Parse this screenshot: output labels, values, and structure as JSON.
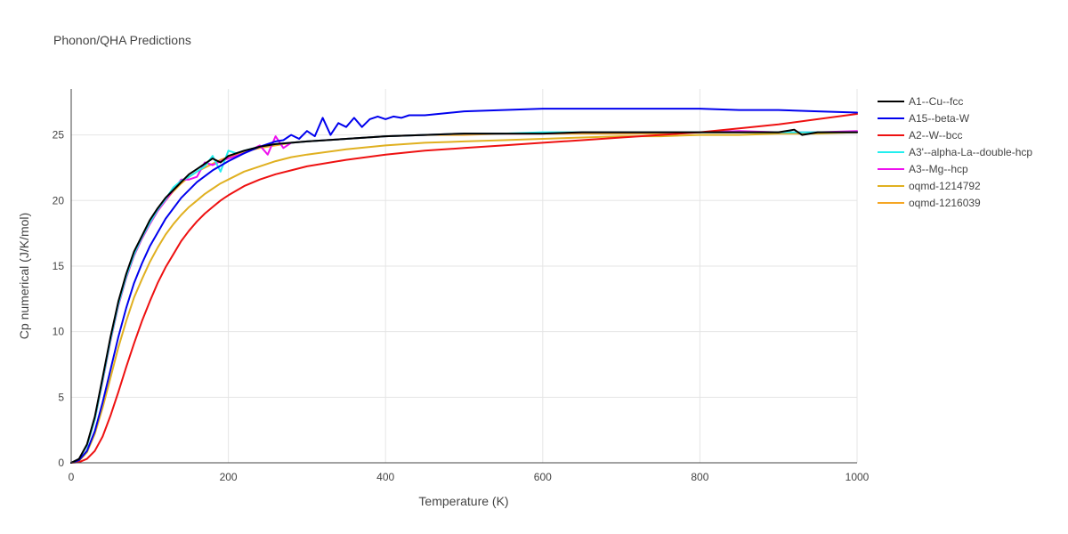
{
  "chart_data": {
    "type": "line",
    "title": "Phonon/QHA Predictions",
    "xlabel": "Temperature (K)",
    "ylabel": "Cp numerical (J/K/mol)",
    "xlim": [
      0,
      1000
    ],
    "ylim": [
      0,
      28.5
    ],
    "xticks": [
      0,
      200,
      400,
      600,
      800,
      1000
    ],
    "yticks": [
      0,
      5,
      10,
      15,
      20,
      25
    ],
    "grid": true,
    "legend_position": "right",
    "series": [
      {
        "name": "A1--Cu--fcc",
        "color": "#000000",
        "x": [
          0,
          10,
          20,
          30,
          40,
          50,
          60,
          70,
          80,
          90,
          100,
          110,
          120,
          130,
          140,
          150,
          160,
          170,
          180,
          190,
          200,
          220,
          240,
          260,
          280,
          300,
          350,
          400,
          450,
          500,
          550,
          600,
          650,
          700,
          750,
          800,
          850,
          900,
          920,
          930,
          950,
          1000
        ],
        "y": [
          0,
          0.3,
          1.4,
          3.5,
          6.5,
          9.6,
          12.3,
          14.4,
          16.1,
          17.3,
          18.5,
          19.4,
          20.2,
          20.8,
          21.4,
          22.0,
          22.4,
          22.8,
          23.2,
          22.9,
          23.4,
          23.8,
          24.1,
          24.3,
          24.4,
          24.5,
          24.7,
          24.9,
          25.0,
          25.1,
          25.1,
          25.1,
          25.2,
          25.2,
          25.2,
          25.2,
          25.2,
          25.2,
          25.4,
          25.0,
          25.2,
          25.2
        ]
      },
      {
        "name": "A15--beta-W",
        "color": "#0000ee",
        "x": [
          0,
          10,
          20,
          30,
          40,
          50,
          60,
          70,
          80,
          90,
          100,
          120,
          140,
          160,
          180,
          200,
          220,
          240,
          260,
          270,
          280,
          290,
          300,
          310,
          320,
          330,
          340,
          350,
          360,
          370,
          380,
          390,
          400,
          410,
          420,
          430,
          440,
          450,
          500,
          550,
          600,
          650,
          700,
          750,
          800,
          850,
          900,
          950,
          1000
        ],
        "y": [
          0,
          0.2,
          0.9,
          2.4,
          4.6,
          7.1,
          9.6,
          11.8,
          13.7,
          15.2,
          16.5,
          18.6,
          20.2,
          21.4,
          22.3,
          23.0,
          23.6,
          24.1,
          24.5,
          24.6,
          25.0,
          24.7,
          25.3,
          24.9,
          26.3,
          25.0,
          25.9,
          25.6,
          26.3,
          25.6,
          26.2,
          26.4,
          26.2,
          26.4,
          26.3,
          26.5,
          26.5,
          26.5,
          26.8,
          26.9,
          27.0,
          27.0,
          27.0,
          27.0,
          27.0,
          26.9,
          26.9,
          26.8,
          26.7
        ]
      },
      {
        "name": "A2--W--bcc",
        "color": "#ee1111",
        "x": [
          0,
          10,
          20,
          30,
          40,
          50,
          60,
          70,
          80,
          90,
          100,
          110,
          120,
          130,
          140,
          150,
          160,
          170,
          180,
          190,
          200,
          220,
          240,
          260,
          280,
          300,
          350,
          400,
          450,
          500,
          550,
          600,
          650,
          700,
          750,
          800,
          850,
          900,
          950,
          1000
        ],
        "y": [
          0,
          0.05,
          0.3,
          0.9,
          2.0,
          3.6,
          5.4,
          7.3,
          9.1,
          10.8,
          12.3,
          13.7,
          14.9,
          15.9,
          16.9,
          17.7,
          18.4,
          19.0,
          19.5,
          20.0,
          20.4,
          21.1,
          21.6,
          22.0,
          22.3,
          22.6,
          23.1,
          23.5,
          23.8,
          24.0,
          24.2,
          24.4,
          24.6,
          24.8,
          25.0,
          25.2,
          25.5,
          25.8,
          26.2,
          26.6
        ]
      },
      {
        "name": "A3'--alpha-La--double-hcp",
        "color": "#22eeee",
        "x": [
          0,
          10,
          20,
          30,
          40,
          50,
          60,
          70,
          80,
          90,
          100,
          110,
          120,
          130,
          140,
          150,
          160,
          170,
          180,
          190,
          200,
          210,
          220,
          240,
          260,
          280,
          300,
          350,
          400,
          450,
          500,
          550,
          600,
          650,
          700,
          750,
          800,
          850,
          900,
          950,
          1000
        ],
        "y": [
          0,
          0.3,
          1.3,
          3.3,
          6.3,
          9.4,
          12.1,
          14.2,
          15.9,
          17.2,
          18.3,
          19.3,
          20.1,
          21.0,
          21.5,
          21.8,
          22.2,
          22.6,
          23.4,
          22.2,
          23.8,
          23.6,
          23.8,
          24.1,
          24.3,
          24.4,
          24.5,
          24.7,
          24.9,
          25.0,
          25.1,
          25.1,
          25.2,
          25.2,
          25.2,
          25.2,
          25.2,
          25.2,
          25.2,
          25.2,
          25.2
        ]
      },
      {
        "name": "A3--Mg--hcp",
        "color": "#ee11ee",
        "x": [
          0,
          10,
          20,
          30,
          40,
          50,
          60,
          70,
          80,
          90,
          100,
          110,
          120,
          130,
          140,
          150,
          160,
          170,
          180,
          190,
          200,
          220,
          240,
          250,
          260,
          270,
          280,
          300,
          350,
          400,
          450,
          500,
          550,
          600,
          650,
          700,
          750,
          800,
          850,
          900,
          950,
          1000
        ],
        "y": [
          0,
          0.3,
          1.3,
          3.3,
          6.2,
          9.3,
          12.0,
          14.1,
          15.8,
          17.1,
          18.2,
          19.2,
          20.0,
          20.8,
          21.6,
          21.6,
          21.8,
          22.9,
          22.7,
          23.0,
          23.2,
          23.6,
          24.2,
          23.5,
          24.9,
          24.0,
          24.4,
          24.5,
          24.7,
          24.9,
          25.0,
          25.1,
          25.1,
          25.1,
          25.2,
          25.2,
          25.2,
          25.2,
          25.3,
          25.2,
          25.2,
          25.3
        ]
      },
      {
        "name": "oqmd-1214792",
        "color": "#e0b020",
        "x": [
          0,
          10,
          20,
          30,
          40,
          50,
          60,
          70,
          80,
          90,
          100,
          110,
          120,
          130,
          140,
          150,
          160,
          170,
          180,
          190,
          200,
          220,
          240,
          260,
          280,
          300,
          350,
          400,
          450,
          500,
          550,
          600,
          650,
          700,
          750,
          800,
          850,
          900,
          950,
          1000
        ],
        "y": [
          0,
          0.15,
          0.8,
          2.2,
          4.2,
          6.5,
          8.8,
          10.8,
          12.6,
          14.0,
          15.3,
          16.4,
          17.4,
          18.2,
          18.9,
          19.5,
          20.0,
          20.5,
          20.9,
          21.3,
          21.6,
          22.2,
          22.6,
          23.0,
          23.3,
          23.5,
          23.9,
          24.2,
          24.4,
          24.5,
          24.6,
          24.7,
          24.8,
          24.9,
          24.9,
          25.0,
          25.0,
          25.1,
          25.1,
          25.2
        ]
      },
      {
        "name": "oqmd-1216039",
        "color": "#f5a623",
        "x": [
          0,
          10,
          20,
          30,
          40,
          50,
          60,
          70,
          80,
          90,
          100,
          110,
          120,
          130,
          140,
          150,
          160,
          170,
          180,
          190,
          200,
          220,
          240,
          260,
          280,
          300,
          350,
          400,
          450,
          500,
          550,
          600,
          650,
          700,
          750,
          800,
          850,
          900,
          950,
          1000
        ],
        "y": [
          0,
          0.3,
          1.3,
          3.3,
          6.2,
          9.3,
          12.0,
          14.1,
          15.8,
          17.1,
          18.2,
          19.2,
          20.0,
          20.7,
          21.3,
          21.8,
          22.2,
          22.5,
          22.8,
          23.1,
          23.3,
          23.7,
          24.0,
          24.2,
          24.4,
          24.5,
          24.7,
          24.9,
          25.0,
          25.0,
          25.1,
          25.1,
          25.1,
          25.1,
          25.1,
          25.2,
          25.2,
          25.2,
          25.2,
          25.2
        ]
      }
    ]
  }
}
